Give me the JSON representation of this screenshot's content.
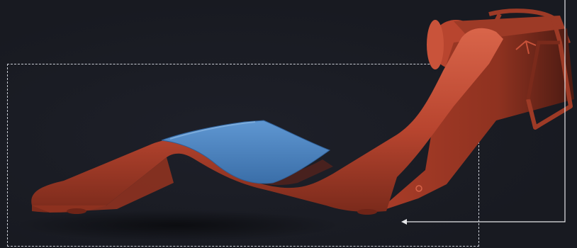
{
  "scene": {
    "subject": "lounge-chair-render",
    "colors": {
      "background": "#181a21",
      "frame": "#c9ccd4",
      "body": "#b8452f",
      "body_dark": "#6e2417",
      "body_light": "#d9654a",
      "cushion": "#3f78b8",
      "cushion_light": "#5f97d2"
    }
  }
}
